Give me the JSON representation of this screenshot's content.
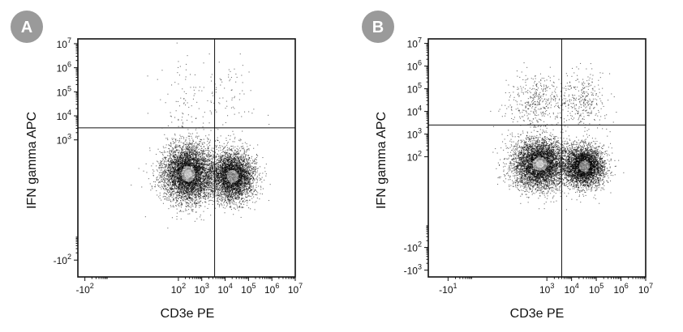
{
  "chart_data": [
    {
      "type": "scatter",
      "panel_label": "A",
      "xlabel": "CD3e PE",
      "ylabel": "IFN gamma APC",
      "x_scale": "biexponential",
      "y_scale": "biexponential",
      "xlim_decades": [
        -2.3,
        7
      ],
      "ylim_decades": [
        -2.7,
        7.2
      ],
      "x_ticks": [
        {
          "base": "-10",
          "exp": "2",
          "decade": -2
        },
        {
          "base": "10",
          "exp": "2",
          "decade": 2
        },
        {
          "base": "10",
          "exp": "3",
          "decade": 3
        },
        {
          "base": "10",
          "exp": "4",
          "decade": 4
        },
        {
          "base": "10",
          "exp": "5",
          "decade": 5
        },
        {
          "base": "10",
          "exp": "6",
          "decade": 6
        },
        {
          "base": "10",
          "exp": "7",
          "decade": 7
        }
      ],
      "y_ticks": [
        {
          "base": "-10",
          "exp": "2",
          "decade": -2
        },
        {
          "base": "10",
          "exp": "3",
          "decade": 3
        },
        {
          "base": "10",
          "exp": "4",
          "decade": 4
        },
        {
          "base": "10",
          "exp": "5",
          "decade": 5
        },
        {
          "base": "10",
          "exp": "6",
          "decade": 6
        },
        {
          "base": "10",
          "exp": "7",
          "decade": 7
        }
      ],
      "quadrant_gate": {
        "x_decade": 3.55,
        "y_decade": 3.5
      },
      "populations": [
        {
          "name": "CD3- IFNg-",
          "x_center": 2.4,
          "y_center": 1.6,
          "x_spread": 0.55,
          "y_spread": 0.6,
          "weight": 0.55
        },
        {
          "name": "CD3+ IFNg-",
          "x_center": 4.3,
          "y_center": 1.5,
          "x_spread": 0.45,
          "y_spread": 0.5,
          "weight": 0.43
        },
        {
          "name": "CD3- IFNg+",
          "x_center": 2.5,
          "y_center": 4.6,
          "x_spread": 0.8,
          "y_spread": 1.0,
          "weight": 0.012
        },
        {
          "name": "CD3+ IFNg+",
          "x_center": 4.3,
          "y_center": 4.6,
          "x_spread": 0.6,
          "y_spread": 1.0,
          "weight": 0.008
        }
      ]
    },
    {
      "type": "scatter",
      "panel_label": "B",
      "xlabel": "CD3e PE",
      "ylabel": "IFN gamma APC",
      "x_scale": "biexponential",
      "y_scale": "biexponential",
      "xlim_decades": [
        -1.8,
        7
      ],
      "ylim_decades": [
        -3.3,
        7.2
      ],
      "x_ticks": [
        {
          "base": "-10",
          "exp": "1",
          "decade": -1
        },
        {
          "base": "10",
          "exp": "3",
          "decade": 3
        },
        {
          "base": "10",
          "exp": "4",
          "decade": 4
        },
        {
          "base": "10",
          "exp": "5",
          "decade": 5
        },
        {
          "base": "10",
          "exp": "6",
          "decade": 6
        },
        {
          "base": "10",
          "exp": "7",
          "decade": 7
        }
      ],
      "y_ticks": [
        {
          "base": "-10",
          "exp": "3",
          "decade": -3
        },
        {
          "base": "-10",
          "exp": "2",
          "decade": -2
        },
        {
          "base": "10",
          "exp": "2",
          "decade": 2
        },
        {
          "base": "10",
          "exp": "3",
          "decade": 3
        },
        {
          "base": "10",
          "exp": "4",
          "decade": 4
        },
        {
          "base": "10",
          "exp": "5",
          "decade": 5
        },
        {
          "base": "10",
          "exp": "6",
          "decade": 6
        },
        {
          "base": "10",
          "exp": "7",
          "decade": 7
        }
      ],
      "quadrant_gate": {
        "x_decade": 3.6,
        "y_decade": 3.4
      },
      "populations": [
        {
          "name": "CD3- IFNg-",
          "x_center": 2.7,
          "y_center": 1.7,
          "x_spread": 0.55,
          "y_spread": 0.55,
          "weight": 0.52
        },
        {
          "name": "CD3+ IFNg-",
          "x_center": 4.5,
          "y_center": 1.6,
          "x_spread": 0.4,
          "y_spread": 0.45,
          "weight": 0.4
        },
        {
          "name": "CD3- IFNg+",
          "x_center": 2.6,
          "y_center": 4.5,
          "x_spread": 0.6,
          "y_spread": 0.6,
          "weight": 0.045
        },
        {
          "name": "CD3+ IFNg+",
          "x_center": 4.4,
          "y_center": 4.5,
          "x_spread": 0.5,
          "y_spread": 0.6,
          "weight": 0.035
        }
      ]
    }
  ]
}
